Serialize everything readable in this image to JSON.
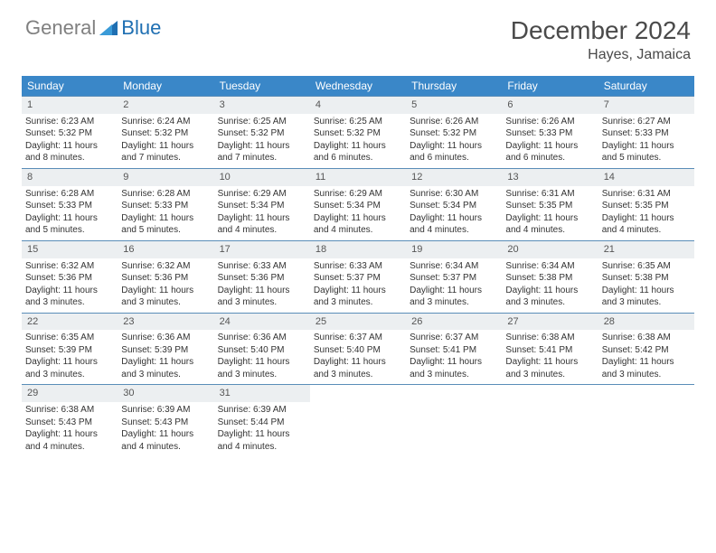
{
  "logo": {
    "text1": "General",
    "text2": "Blue",
    "icon_color": "#1f6fb2"
  },
  "header": {
    "month_title": "December 2024",
    "location": "Hayes, Jamaica"
  },
  "colors": {
    "header_bg": "#3a87c8",
    "header_text": "#ffffff",
    "daynum_bg": "#eceff1",
    "week_border": "#5a8db8",
    "body_text": "#333333"
  },
  "day_names": [
    "Sunday",
    "Monday",
    "Tuesday",
    "Wednesday",
    "Thursday",
    "Friday",
    "Saturday"
  ],
  "weeks": [
    [
      {
        "num": "1",
        "sunrise": "Sunrise: 6:23 AM",
        "sunset": "Sunset: 5:32 PM",
        "day1": "Daylight: 11 hours",
        "day2": "and 8 minutes."
      },
      {
        "num": "2",
        "sunrise": "Sunrise: 6:24 AM",
        "sunset": "Sunset: 5:32 PM",
        "day1": "Daylight: 11 hours",
        "day2": "and 7 minutes."
      },
      {
        "num": "3",
        "sunrise": "Sunrise: 6:25 AM",
        "sunset": "Sunset: 5:32 PM",
        "day1": "Daylight: 11 hours",
        "day2": "and 7 minutes."
      },
      {
        "num": "4",
        "sunrise": "Sunrise: 6:25 AM",
        "sunset": "Sunset: 5:32 PM",
        "day1": "Daylight: 11 hours",
        "day2": "and 6 minutes."
      },
      {
        "num": "5",
        "sunrise": "Sunrise: 6:26 AM",
        "sunset": "Sunset: 5:32 PM",
        "day1": "Daylight: 11 hours",
        "day2": "and 6 minutes."
      },
      {
        "num": "6",
        "sunrise": "Sunrise: 6:26 AM",
        "sunset": "Sunset: 5:33 PM",
        "day1": "Daylight: 11 hours",
        "day2": "and 6 minutes."
      },
      {
        "num": "7",
        "sunrise": "Sunrise: 6:27 AM",
        "sunset": "Sunset: 5:33 PM",
        "day1": "Daylight: 11 hours",
        "day2": "and 5 minutes."
      }
    ],
    [
      {
        "num": "8",
        "sunrise": "Sunrise: 6:28 AM",
        "sunset": "Sunset: 5:33 PM",
        "day1": "Daylight: 11 hours",
        "day2": "and 5 minutes."
      },
      {
        "num": "9",
        "sunrise": "Sunrise: 6:28 AM",
        "sunset": "Sunset: 5:33 PM",
        "day1": "Daylight: 11 hours",
        "day2": "and 5 minutes."
      },
      {
        "num": "10",
        "sunrise": "Sunrise: 6:29 AM",
        "sunset": "Sunset: 5:34 PM",
        "day1": "Daylight: 11 hours",
        "day2": "and 4 minutes."
      },
      {
        "num": "11",
        "sunrise": "Sunrise: 6:29 AM",
        "sunset": "Sunset: 5:34 PM",
        "day1": "Daylight: 11 hours",
        "day2": "and 4 minutes."
      },
      {
        "num": "12",
        "sunrise": "Sunrise: 6:30 AM",
        "sunset": "Sunset: 5:34 PM",
        "day1": "Daylight: 11 hours",
        "day2": "and 4 minutes."
      },
      {
        "num": "13",
        "sunrise": "Sunrise: 6:31 AM",
        "sunset": "Sunset: 5:35 PM",
        "day1": "Daylight: 11 hours",
        "day2": "and 4 minutes."
      },
      {
        "num": "14",
        "sunrise": "Sunrise: 6:31 AM",
        "sunset": "Sunset: 5:35 PM",
        "day1": "Daylight: 11 hours",
        "day2": "and 4 minutes."
      }
    ],
    [
      {
        "num": "15",
        "sunrise": "Sunrise: 6:32 AM",
        "sunset": "Sunset: 5:36 PM",
        "day1": "Daylight: 11 hours",
        "day2": "and 3 minutes."
      },
      {
        "num": "16",
        "sunrise": "Sunrise: 6:32 AM",
        "sunset": "Sunset: 5:36 PM",
        "day1": "Daylight: 11 hours",
        "day2": "and 3 minutes."
      },
      {
        "num": "17",
        "sunrise": "Sunrise: 6:33 AM",
        "sunset": "Sunset: 5:36 PM",
        "day1": "Daylight: 11 hours",
        "day2": "and 3 minutes."
      },
      {
        "num": "18",
        "sunrise": "Sunrise: 6:33 AM",
        "sunset": "Sunset: 5:37 PM",
        "day1": "Daylight: 11 hours",
        "day2": "and 3 minutes."
      },
      {
        "num": "19",
        "sunrise": "Sunrise: 6:34 AM",
        "sunset": "Sunset: 5:37 PM",
        "day1": "Daylight: 11 hours",
        "day2": "and 3 minutes."
      },
      {
        "num": "20",
        "sunrise": "Sunrise: 6:34 AM",
        "sunset": "Sunset: 5:38 PM",
        "day1": "Daylight: 11 hours",
        "day2": "and 3 minutes."
      },
      {
        "num": "21",
        "sunrise": "Sunrise: 6:35 AM",
        "sunset": "Sunset: 5:38 PM",
        "day1": "Daylight: 11 hours",
        "day2": "and 3 minutes."
      }
    ],
    [
      {
        "num": "22",
        "sunrise": "Sunrise: 6:35 AM",
        "sunset": "Sunset: 5:39 PM",
        "day1": "Daylight: 11 hours",
        "day2": "and 3 minutes."
      },
      {
        "num": "23",
        "sunrise": "Sunrise: 6:36 AM",
        "sunset": "Sunset: 5:39 PM",
        "day1": "Daylight: 11 hours",
        "day2": "and 3 minutes."
      },
      {
        "num": "24",
        "sunrise": "Sunrise: 6:36 AM",
        "sunset": "Sunset: 5:40 PM",
        "day1": "Daylight: 11 hours",
        "day2": "and 3 minutes."
      },
      {
        "num": "25",
        "sunrise": "Sunrise: 6:37 AM",
        "sunset": "Sunset: 5:40 PM",
        "day1": "Daylight: 11 hours",
        "day2": "and 3 minutes."
      },
      {
        "num": "26",
        "sunrise": "Sunrise: 6:37 AM",
        "sunset": "Sunset: 5:41 PM",
        "day1": "Daylight: 11 hours",
        "day2": "and 3 minutes."
      },
      {
        "num": "27",
        "sunrise": "Sunrise: 6:38 AM",
        "sunset": "Sunset: 5:41 PM",
        "day1": "Daylight: 11 hours",
        "day2": "and 3 minutes."
      },
      {
        "num": "28",
        "sunrise": "Sunrise: 6:38 AM",
        "sunset": "Sunset: 5:42 PM",
        "day1": "Daylight: 11 hours",
        "day2": "and 3 minutes."
      }
    ],
    [
      {
        "num": "29",
        "sunrise": "Sunrise: 6:38 AM",
        "sunset": "Sunset: 5:43 PM",
        "day1": "Daylight: 11 hours",
        "day2": "and 4 minutes."
      },
      {
        "num": "30",
        "sunrise": "Sunrise: 6:39 AM",
        "sunset": "Sunset: 5:43 PM",
        "day1": "Daylight: 11 hours",
        "day2": "and 4 minutes."
      },
      {
        "num": "31",
        "sunrise": "Sunrise: 6:39 AM",
        "sunset": "Sunset: 5:44 PM",
        "day1": "Daylight: 11 hours",
        "day2": "and 4 minutes."
      },
      {
        "empty": true
      },
      {
        "empty": true
      },
      {
        "empty": true
      },
      {
        "empty": true
      }
    ]
  ]
}
